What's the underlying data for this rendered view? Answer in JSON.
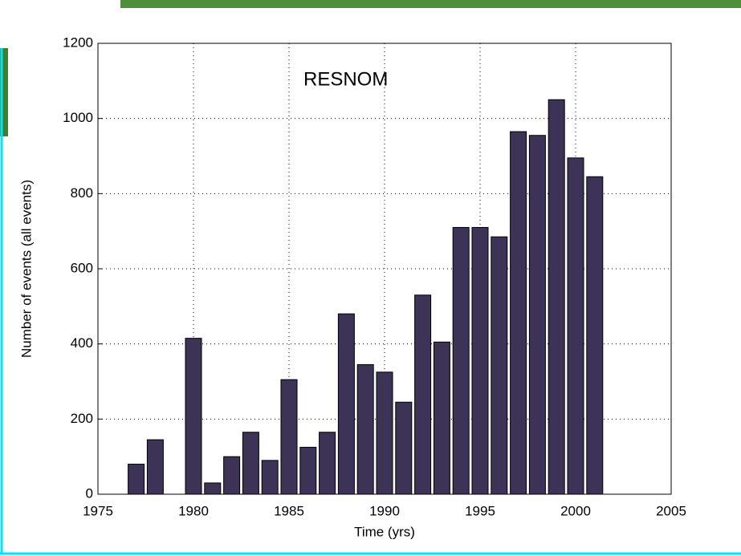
{
  "chart_data": {
    "type": "bar",
    "annotation": "RESNOM",
    "xlabel": "Time (yrs)",
    "ylabel": "Number of events (all events)",
    "x": [
      1977,
      1978,
      1980,
      1981,
      1982,
      1983,
      1984,
      1985,
      1986,
      1987,
      1988,
      1989,
      1990,
      1991,
      1992,
      1993,
      1994,
      1995,
      1996,
      1997,
      1998,
      1999,
      2000,
      2001
    ],
    "values": [
      80,
      145,
      415,
      30,
      100,
      165,
      90,
      305,
      125,
      165,
      480,
      345,
      325,
      245,
      530,
      405,
      710,
      710,
      685,
      965,
      955,
      1050,
      895,
      845
    ],
    "color": "#3d3356",
    "xlim": [
      1975,
      2005
    ],
    "xticks": [
      1975,
      1980,
      1985,
      1990,
      1995,
      2000,
      2005
    ],
    "ylim": [
      0,
      1200
    ],
    "yticks": [
      0,
      200,
      400,
      600,
      800,
      1000,
      1200
    ],
    "grid": true
  }
}
